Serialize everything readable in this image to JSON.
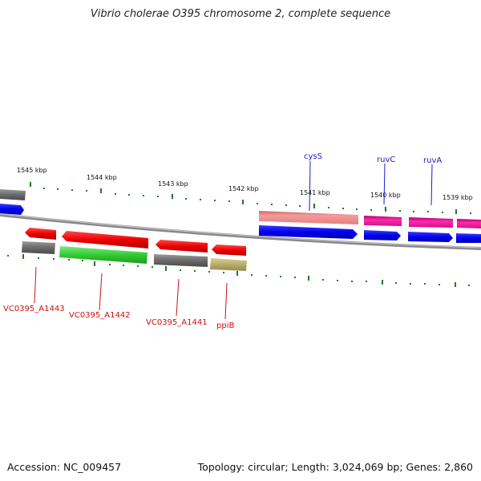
{
  "title": "Vibrio cholerae O395 chromosome 2, complete sequence",
  "footer": {
    "accession": "Accession: NC_009457",
    "summary": "Topology: circular; Length: 3,024,069 bp; Genes: 2,860"
  },
  "scale_labels": [
    "1545 kbp",
    "1544 kbp",
    "1543 kbp",
    "1542 kbp",
    "1541 kbp",
    "1540 kbp",
    "1539 kbp"
  ],
  "gene_labels_top": [
    "cysS",
    "ruvC",
    "ruvA"
  ],
  "gene_labels_bottom": [
    "VC0395_A1443",
    "VC0395_A1442",
    "VC0395_A1441",
    "ppiB"
  ],
  "colors": {
    "label_blue": "#1a1acc",
    "label_red": "#cc1111",
    "tick_green": "#1f7a1f",
    "backbone": "#8a8a8a"
  }
}
